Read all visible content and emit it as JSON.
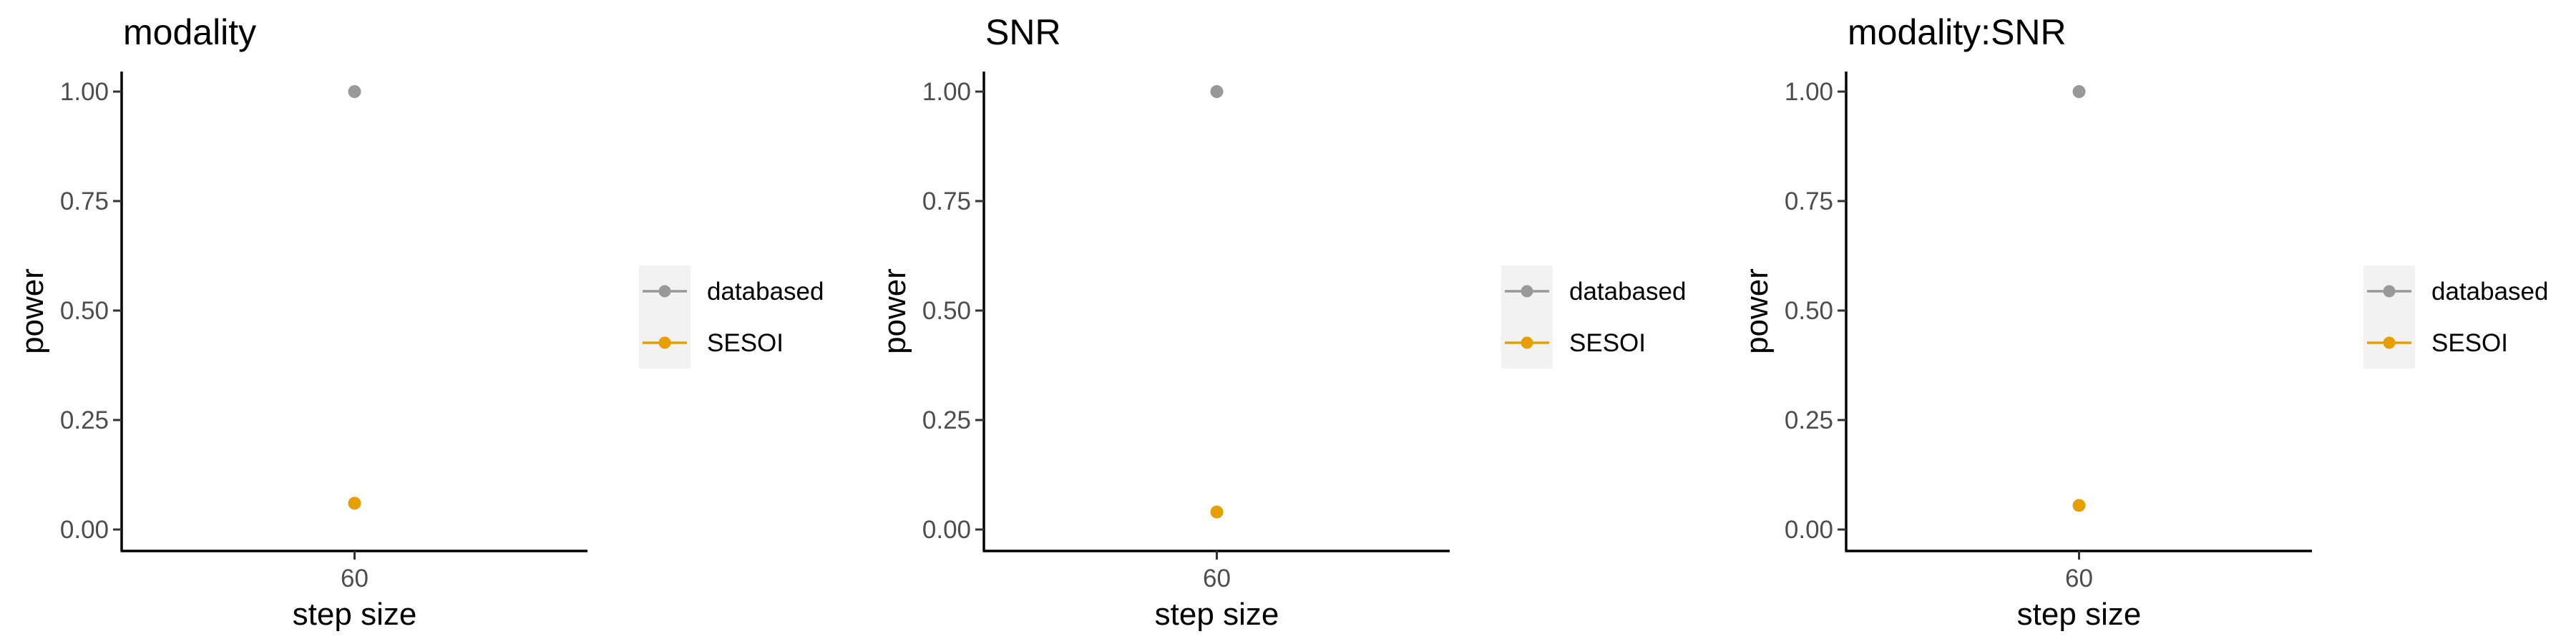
{
  "chart_data": [
    {
      "type": "scatter",
      "title": "modality",
      "xlabel": "step size",
      "ylabel": "power",
      "categories": [
        "60"
      ],
      "ylim": [
        0,
        1
      ],
      "yticks": [
        "0.00",
        "0.25",
        "0.50",
        "0.75",
        "1.00"
      ],
      "series": [
        {
          "name": "databased",
          "color": "#999999",
          "values": [
            1.0
          ]
        },
        {
          "name": "SESOI",
          "color": "#E69F00",
          "values": [
            0.06
          ]
        }
      ],
      "legend": "right",
      "grid": false
    },
    {
      "type": "scatter",
      "title": "SNR",
      "xlabel": "step size",
      "ylabel": "power",
      "categories": [
        "60"
      ],
      "ylim": [
        0,
        1
      ],
      "yticks": [
        "0.00",
        "0.25",
        "0.50",
        "0.75",
        "1.00"
      ],
      "series": [
        {
          "name": "databased",
          "color": "#999999",
          "values": [
            1.0
          ]
        },
        {
          "name": "SESOI",
          "color": "#E69F00",
          "values": [
            0.04
          ]
        }
      ],
      "legend": "right",
      "grid": false
    },
    {
      "type": "scatter",
      "title": "modality:SNR",
      "xlabel": "step size",
      "ylabel": "power",
      "categories": [
        "60"
      ],
      "ylim": [
        0,
        1
      ],
      "yticks": [
        "0.00",
        "0.25",
        "0.50",
        "0.75",
        "1.00"
      ],
      "series": [
        {
          "name": "databased",
          "color": "#999999",
          "values": [
            1.0
          ]
        },
        {
          "name": "SESOI",
          "color": "#E69F00",
          "values": [
            0.055
          ]
        }
      ],
      "legend": "right",
      "grid": false
    }
  ]
}
